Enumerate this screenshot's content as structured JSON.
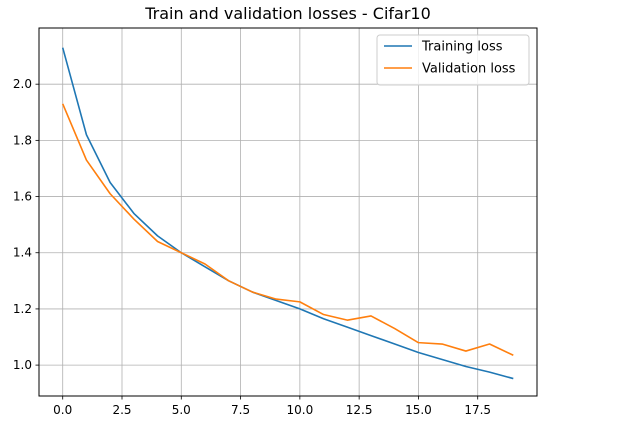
{
  "chart_data": {
    "type": "line",
    "title": "Train and validation losses - Cifar10",
    "xlabel": "",
    "ylabel": "",
    "xlim": [
      -1,
      20
    ],
    "ylim": [
      0.89,
      2.2
    ],
    "xticks": [
      0,
      2.5,
      5,
      7.5,
      10,
      12.5,
      15,
      17.5
    ],
    "xtick_labels": [
      "0.0",
      "2.5",
      "5.0",
      "7.5",
      "10.0",
      "12.5",
      "15.0",
      "17.5"
    ],
    "yticks": [
      1.0,
      1.2,
      1.4,
      1.6,
      1.8,
      2.0
    ],
    "ytick_labels": [
      "1.0",
      "1.2",
      "1.4",
      "1.6",
      "1.8",
      "2.0"
    ],
    "grid": true,
    "legend_position": "top-right",
    "x": [
      0,
      1,
      2,
      3,
      4,
      5,
      6,
      7,
      8,
      9,
      10,
      11,
      12,
      13,
      14,
      15,
      16,
      17,
      18,
      19
    ],
    "series": [
      {
        "name": "Training loss",
        "color": "#1f77b4",
        "values": [
          2.13,
          1.82,
          1.65,
          1.54,
          1.46,
          1.4,
          1.35,
          1.3,
          1.26,
          1.23,
          1.2,
          1.165,
          1.135,
          1.105,
          1.075,
          1.045,
          1.02,
          0.995,
          0.975,
          0.952
        ]
      },
      {
        "name": "Validation loss",
        "color": "#ff7f0e",
        "values": [
          1.93,
          1.73,
          1.61,
          1.52,
          1.44,
          1.4,
          1.36,
          1.3,
          1.26,
          1.235,
          1.225,
          1.18,
          1.16,
          1.175,
          1.13,
          1.08,
          1.075,
          1.05,
          1.075,
          1.035
        ]
      }
    ]
  }
}
